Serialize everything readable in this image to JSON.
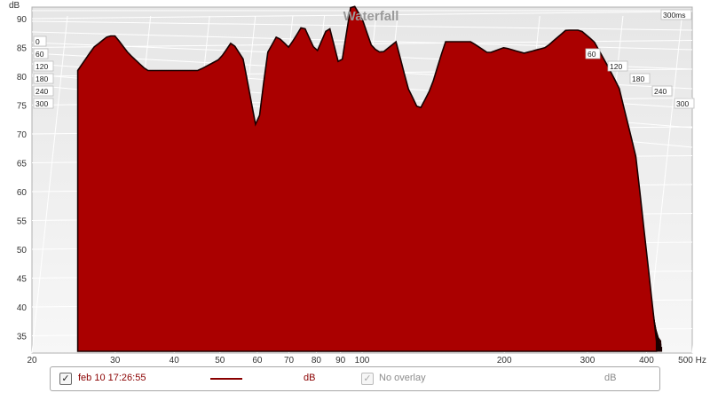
{
  "chart_data": {
    "type": "area",
    "title": "Waterfall",
    "ylabel": "dB",
    "xlabel_unit": "Hz",
    "x_scale": "log",
    "xlim": [
      20,
      500
    ],
    "ylim": [
      32,
      92
    ],
    "x_ticks": [
      {
        "value": 20,
        "label": "20"
      },
      {
        "value": 30,
        "label": "30"
      },
      {
        "value": 40,
        "label": "40"
      },
      {
        "value": 50,
        "label": "50"
      },
      {
        "value": 60,
        "label": "60"
      },
      {
        "value": 70,
        "label": "70"
      },
      {
        "value": 80,
        "label": "80"
      },
      {
        "value": 90,
        "label": "90"
      },
      {
        "value": 100,
        "label": "100"
      },
      {
        "value": 200,
        "label": "200"
      },
      {
        "value": 300,
        "label": "300"
      },
      {
        "value": 400,
        "label": "400"
      },
      {
        "value": 500,
        "label": "500 Hz"
      }
    ],
    "y_ticks": [
      35,
      40,
      45,
      50,
      55,
      60,
      65,
      70,
      75,
      80,
      85,
      90
    ],
    "time_axis": {
      "unit": "ms",
      "max_label": "300ms",
      "ticks": [
        "0",
        "60",
        "120",
        "180",
        "240",
        "300"
      ],
      "right_ticks": [
        "60",
        "120",
        "180",
        "240",
        "300"
      ]
    },
    "series": [
      {
        "slice_ms": 0,
        "x": [
          25,
          27,
          29,
          30,
          32,
          35,
          40,
          45,
          50,
          53,
          56,
          60,
          63,
          66,
          70,
          75,
          80,
          85,
          90,
          95,
          100,
          105,
          110,
          118,
          125,
          132,
          140,
          150,
          160,
          170,
          185,
          200,
          220,
          245,
          270,
          290,
          310,
          330,
          350,
          380,
          420
        ],
        "y": [
          81,
          85,
          87,
          87,
          84,
          81,
          81,
          81,
          83,
          86,
          83,
          70,
          84,
          87,
          85,
          89,
          84,
          89,
          81,
          93,
          90,
          85,
          84,
          86,
          78,
          74,
          78,
          86,
          86,
          86,
          84,
          85,
          84,
          85,
          88,
          88,
          86,
          82,
          78,
          66,
          34
        ]
      },
      {
        "slice_ms": 300,
        "x": [
          25,
          30,
          35,
          40,
          45,
          50,
          55,
          60,
          65,
          70,
          75,
          80,
          90,
          100,
          120,
          150,
          200,
          300,
          420
        ],
        "y": [
          33,
          34,
          33,
          33,
          34,
          33,
          34,
          33,
          34,
          33,
          34,
          33,
          34,
          33,
          34,
          33,
          34,
          33,
          33
        ]
      }
    ],
    "grid": true,
    "fill_color": "#aa0000",
    "line_color": "#1a0000"
  },
  "legend": {
    "checked_mark": "✓",
    "series_label": "feb 10 17:26:55",
    "series_unit": "dB",
    "overlay_label": "No overlay",
    "overlay_unit": "dB",
    "series_color": "#8a0000"
  }
}
